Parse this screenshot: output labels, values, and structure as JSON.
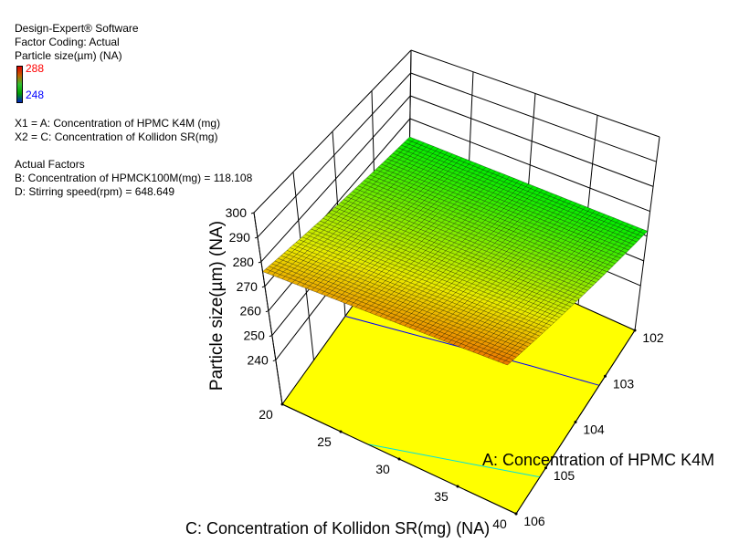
{
  "header": {
    "software": "Design-Expert® Software",
    "coding": "Factor Coding: Actual",
    "response": "Particle size(µm) (NA)"
  },
  "legend": {
    "max": "288",
    "min": "248",
    "max_color": "#ff0000",
    "min_color": "#0000ff"
  },
  "factors": {
    "x1": "X1 = A: Concentration of HPMC K4M (mg)",
    "x2": "X2 = C: Concentration of Kollidon SR(mg)",
    "actual_title": "Actual Factors",
    "b": "B: Concentration of HPMCK100M(mg) = 118.108",
    "d": "D: Stirring speed(rpm) = 648.649"
  },
  "chart_data": {
    "type": "surface",
    "zlabel": "Particle size(µm) (NA)",
    "a_label": "A: Concentration of HPMC K4M",
    "c_label": "C: Concentration of Kollidon SR(mg) (NA)",
    "z_ticks": [
      "240",
      "250",
      "260",
      "270",
      "280",
      "290",
      "300"
    ],
    "a_ticks": [
      "102",
      "103",
      "104",
      "105",
      "106"
    ],
    "c_ticks": [
      "20",
      "25",
      "30",
      "35",
      "40"
    ],
    "a_range": [
      102,
      106
    ],
    "c_range": [
      20,
      40
    ],
    "z_range": [
      240,
      300
    ],
    "surface_corners": [
      {
        "A": 102,
        "C": 20,
        "z": 262
      },
      {
        "A": 102,
        "C": 40,
        "z": 262
      },
      {
        "A": 106,
        "C": 20,
        "z": 276
      },
      {
        "A": 106,
        "C": 40,
        "z": 279
      }
    ],
    "color_scale": [
      248,
      288
    ],
    "floor_color": "#ffff00",
    "floor_contours": [
      {
        "color": "#0000ff",
        "points": [
          [
            20,
            104.0
          ],
          [
            34.5,
            103.4
          ],
          [
            40,
            103.2
          ]
        ]
      },
      {
        "color": "#00e0e0",
        "points": [
          [
            27.3,
            106
          ],
          [
            40,
            105.2
          ]
        ]
      }
    ]
  }
}
